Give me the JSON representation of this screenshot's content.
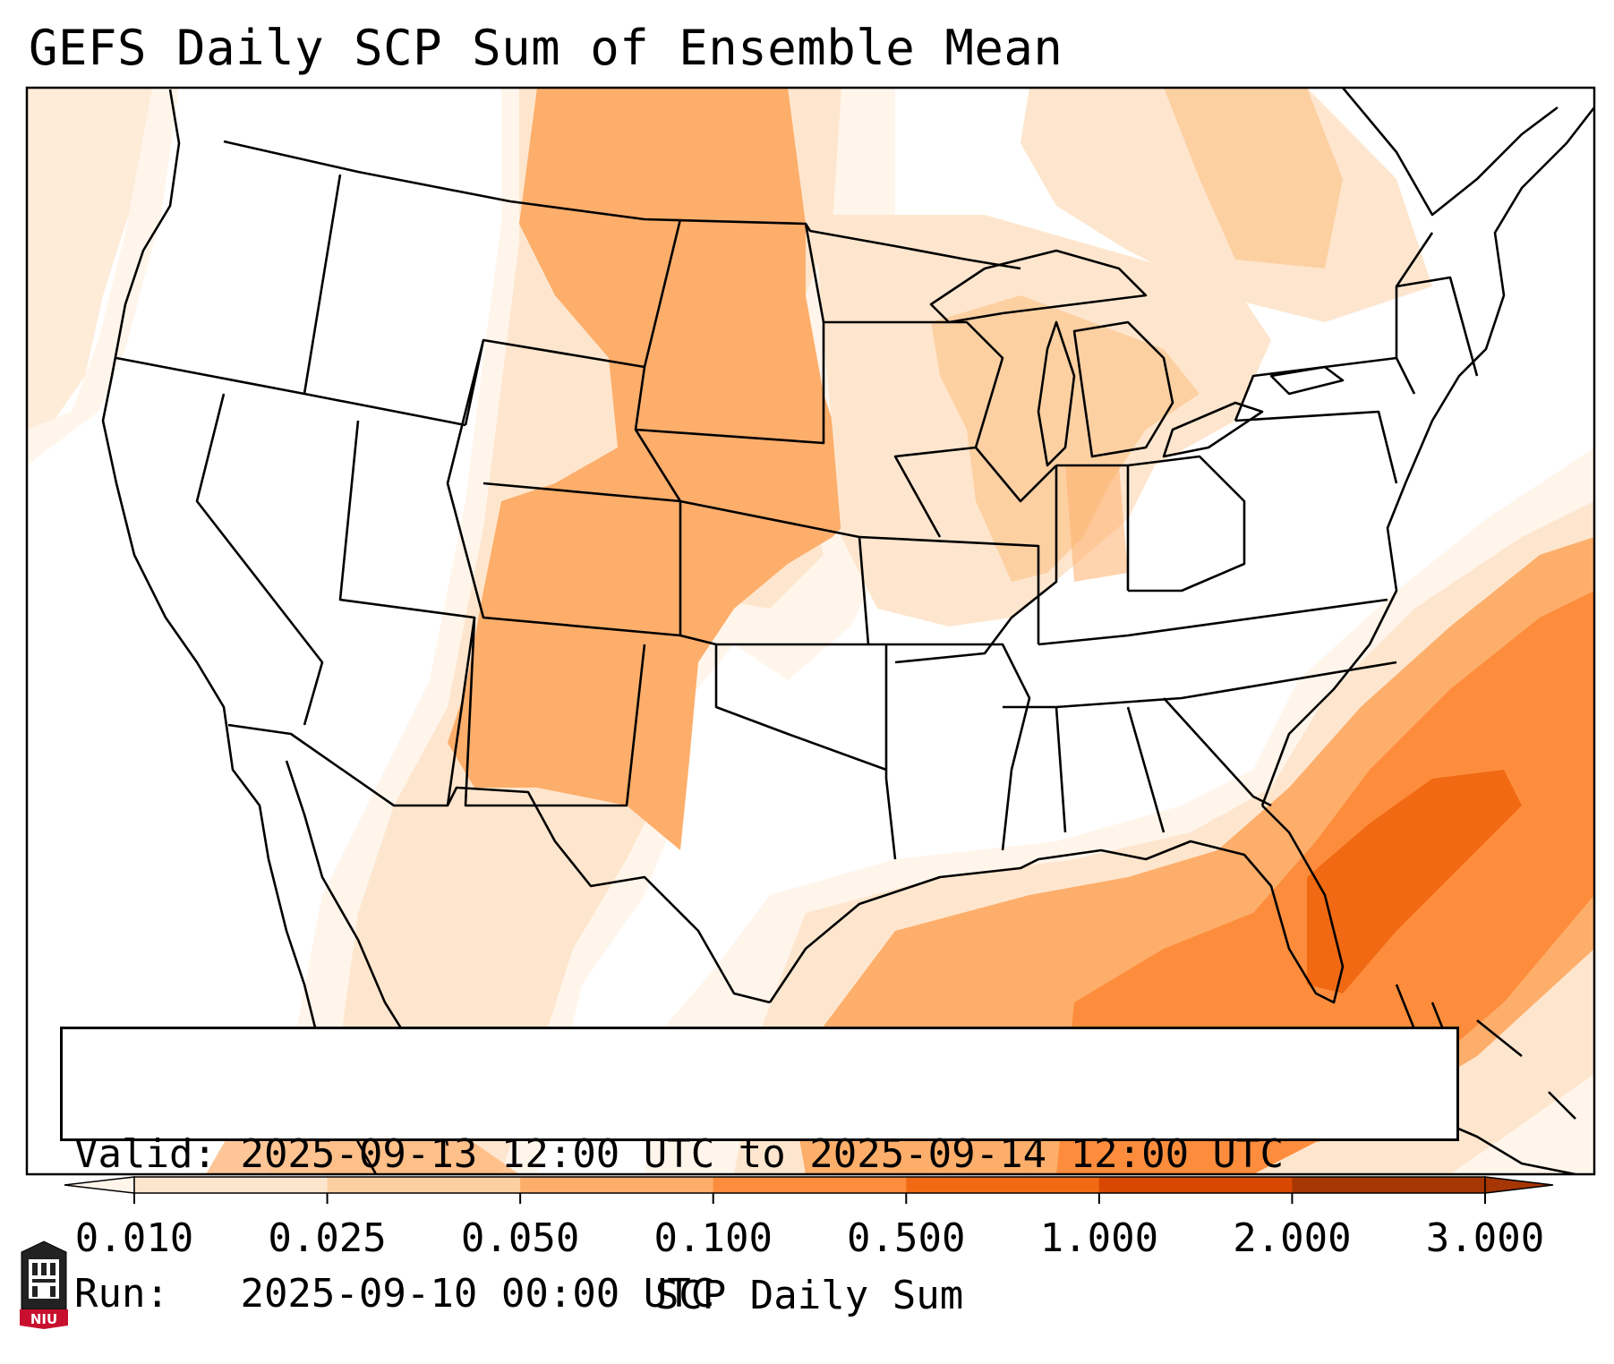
{
  "title": "GEFS Daily SCP Sum of Ensemble Mean",
  "info": {
    "valid_label": "Valid:",
    "valid_value": "2025-09-13 12:00 UTC to 2025-09-14 12:00 UTC",
    "run_label": "Run:",
    "run_value": "2025-09-10 00:00 UTC"
  },
  "colorbar": {
    "label": "SCP Daily Sum",
    "levels": [
      "0.010",
      "0.025",
      "0.050",
      "0.100",
      "0.500",
      "1.000",
      "2.000",
      "3.000"
    ],
    "colors": [
      "#fff5eb",
      "#fee6ce",
      "#fdd0a2",
      "#fdae6b",
      "#fd8d3c",
      "#f16913",
      "#d94801",
      "#a63603"
    ],
    "extend": "both"
  },
  "logo": {
    "text": "NIU",
    "name": "niu-logo"
  },
  "map": {
    "projection": "lambert-conformal",
    "region": "CONUS",
    "fill_levels": {
      "level1": "#fff5eb",
      "level2": "#fee6ce",
      "level3": "#fdd0a2",
      "level4": "#fdae6b",
      "level5": "#fd8d3c",
      "level6": "#f16913"
    },
    "boundary_color": "#000000"
  }
}
